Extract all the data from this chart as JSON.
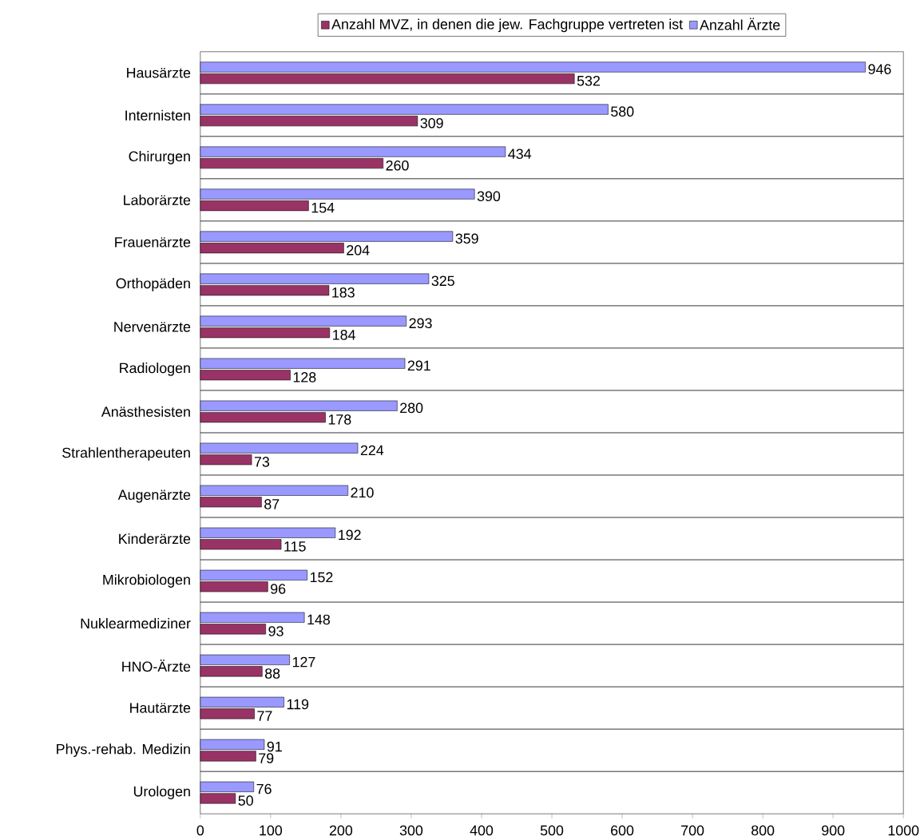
{
  "chart_data": {
    "type": "bar",
    "orientation": "horizontal",
    "categories": [
      "Hausärzte",
      "Internisten",
      "Chirurgen",
      "Laborärzte",
      "Frauenärzte",
      "Orthopäden",
      "Nervenärzte",
      "Radiologen",
      "Anästhesisten",
      "Strahlentherapeuten",
      "Augenärzte",
      "Kinderärzte",
      "Mikrobiologen",
      "Nuklearmediziner",
      "HNO-Ärzte",
      "Hautärzte",
      "Phys.-rehab. Medizin",
      "Urologen"
    ],
    "series": [
      {
        "name": "Anzahl MVZ, in denen die jew. Fachgruppe vertreten ist",
        "color": "#993366",
        "values": [
          532,
          309,
          260,
          154,
          204,
          183,
          184,
          128,
          178,
          73,
          87,
          115,
          96,
          93,
          88,
          77,
          79,
          50
        ]
      },
      {
        "name": "Anzahl Ärzte",
        "color": "#9999ff",
        "values": [
          946,
          580,
          434,
          390,
          359,
          325,
          293,
          291,
          280,
          224,
          210,
          192,
          152,
          148,
          127,
          119,
          91,
          76
        ]
      }
    ],
    "xlim": [
      0,
      1000
    ],
    "xticks": [
      0,
      100,
      200,
      300,
      400,
      500,
      600,
      700,
      800,
      900,
      1000
    ],
    "grid": "y",
    "legend": "top",
    "data_labels": true
  }
}
